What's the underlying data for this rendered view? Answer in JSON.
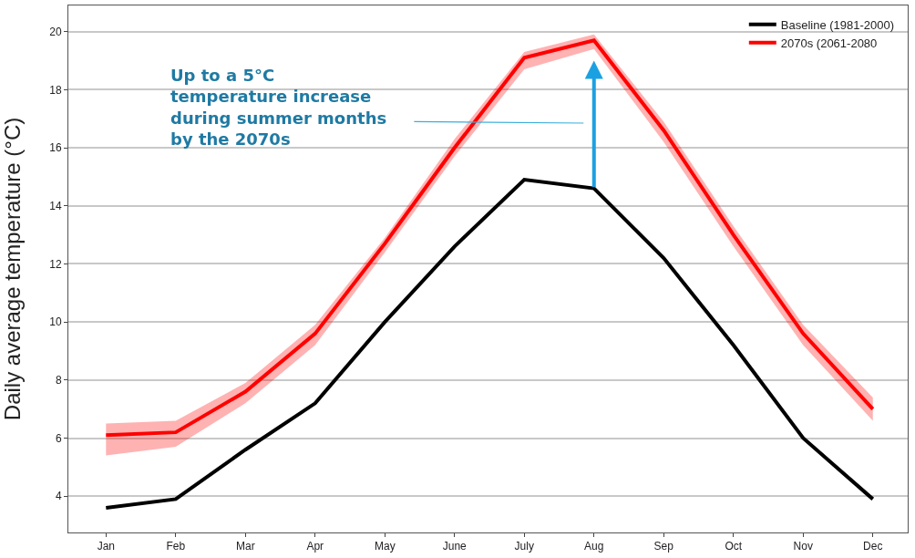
{
  "chart_data": {
    "type": "line",
    "ylabel": "Daily average temperature (°C)",
    "categories": [
      "Jan",
      "Feb",
      "Mar",
      "Apr",
      "May",
      "June",
      "July",
      "Aug",
      "Sep",
      "Oct",
      "Nov",
      "Dec"
    ],
    "series": [
      {
        "name": "Baseline (1981-2000)",
        "color": "#000000",
        "values": [
          3.6,
          3.9,
          5.6,
          7.2,
          10.0,
          12.6,
          14.9,
          14.6,
          12.2,
          9.2,
          6.0,
          3.9
        ]
      },
      {
        "name": "2070s (2061-2080",
        "color": "#ff0000",
        "values": [
          6.1,
          6.2,
          7.6,
          9.6,
          12.7,
          16.0,
          19.1,
          19.7,
          16.6,
          13.0,
          9.6,
          7.0
        ],
        "lower": [
          5.4,
          5.7,
          7.2,
          9.2,
          12.4,
          15.7,
          18.7,
          19.4,
          16.2,
          12.6,
          9.2,
          6.6
        ],
        "upper": [
          6.5,
          6.6,
          7.9,
          9.9,
          12.9,
          16.3,
          19.3,
          19.9,
          16.9,
          13.3,
          9.9,
          7.4
        ]
      }
    ],
    "ylim": [
      2.75,
      20.9
    ],
    "yticks": [
      4,
      6,
      8,
      10,
      12,
      14,
      16,
      18,
      20
    ],
    "grid": "y",
    "legend": "top right",
    "line_style": "solid",
    "marker": "none",
    "annotations": [
      "Up to a 5°C temperature increase during summer months by the 2070s"
    ]
  }
}
